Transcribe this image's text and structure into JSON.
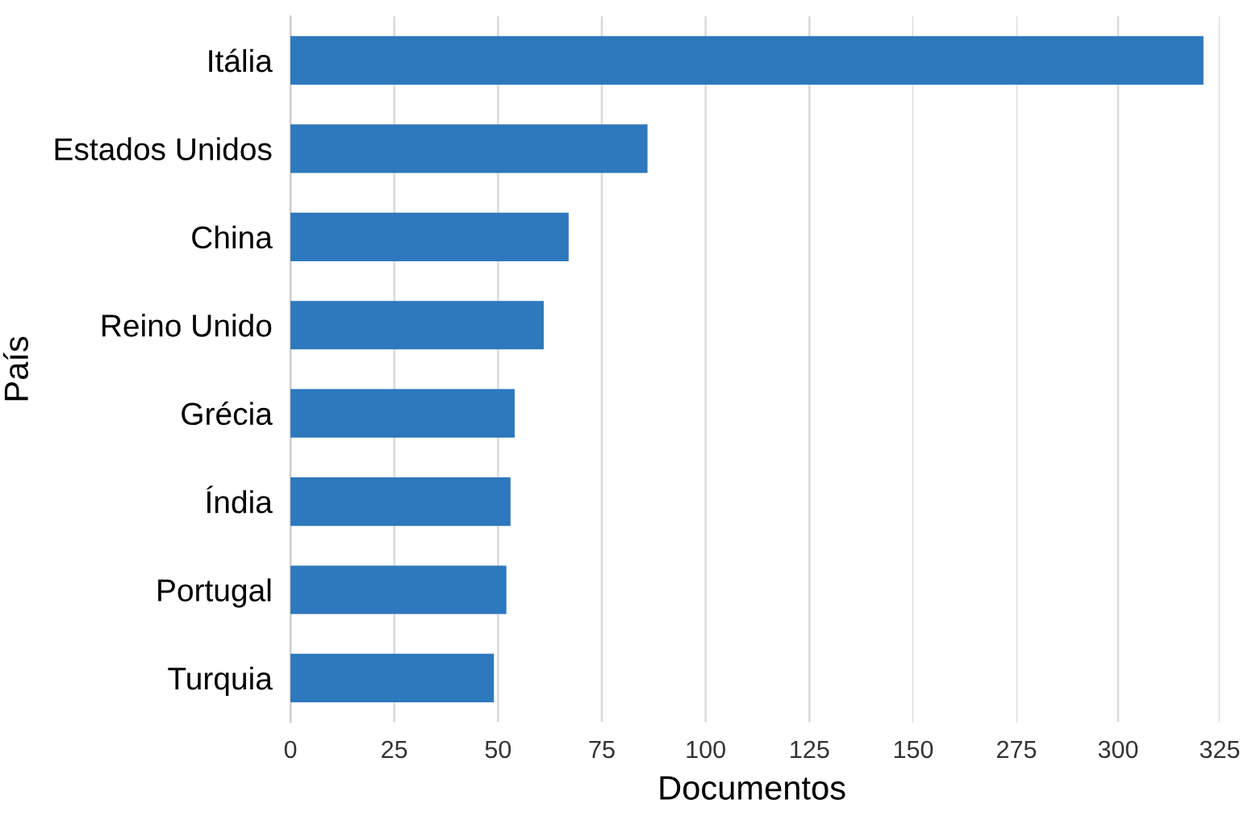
{
  "chart_data": [
    {
      "type": "bar",
      "orientation": "horizontal",
      "categories": [
        "Itália",
        "Estados Unidos",
        "China",
        "Reino Unido",
        "Grécia",
        "Índia",
        "Portugal",
        "Turquia"
      ],
      "values": [
        null,
        86,
        67,
        61,
        54,
        53,
        52,
        49
      ],
      "color": "#2e78bd",
      "xlabel": "Documentos",
      "ylabel": "País",
      "xlim": [
        0,
        150
      ],
      "xticks": [
        0,
        25,
        50,
        75,
        100,
        125,
        150
      ],
      "grid": "x"
    },
    {
      "type": "bar",
      "orientation": "horizontal",
      "categories": [
        null,
        null,
        null,
        null,
        null,
        null,
        null,
        null
      ],
      "values": [
        321,
        null,
        null,
        null,
        null,
        null,
        null,
        null
      ],
      "color": "#2e78bd",
      "xlim": [
        275,
        325
      ],
      "xticks": [
        275,
        300,
        325
      ],
      "grid": "x"
    }
  ]
}
